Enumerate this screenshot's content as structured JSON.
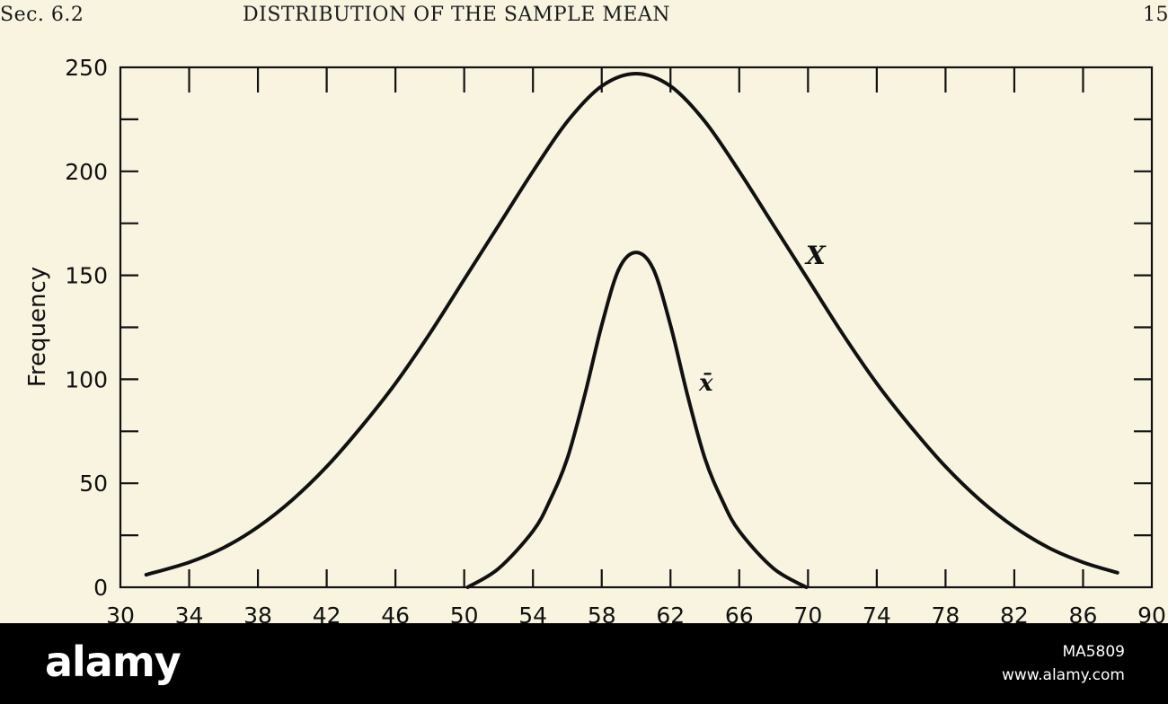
{
  "page_header": {
    "section": "Sec. 6.2",
    "title": "DISTRIBUTION OF THE SAMPLE MEAN",
    "page_number": "15"
  },
  "chart_data": {
    "type": "line",
    "title": "",
    "xlabel": "",
    "ylabel": "Frequency",
    "xlim": [
      30,
      90
    ],
    "ylim": [
      0,
      250
    ],
    "x_ticks": [
      30,
      34,
      38,
      42,
      46,
      50,
      54,
      58,
      62,
      66,
      70,
      74,
      78,
      82,
      86,
      90
    ],
    "y_ticks": [
      0,
      50,
      100,
      150,
      200,
      250
    ],
    "grid": false,
    "series": [
      {
        "name": "X",
        "x": [
          31.5,
          34,
          36,
          38,
          40,
          42,
          44,
          46,
          48,
          50,
          52,
          54,
          56,
          58,
          60,
          62,
          64,
          66,
          68,
          70,
          72,
          74,
          76,
          78,
          80,
          82,
          84,
          86,
          88
        ],
        "y": [
          6,
          12,
          19,
          29,
          42,
          58,
          77,
          98,
          122,
          148,
          174,
          200,
          224,
          241,
          247,
          241,
          224,
          200,
          174,
          148,
          122,
          98,
          77,
          58,
          42,
          29,
          19,
          12,
          7
        ]
      },
      {
        "name": "x̄",
        "x": [
          50.2,
          52,
          54,
          55,
          56,
          57,
          58,
          59,
          60,
          61,
          62,
          63,
          64,
          65,
          66,
          68,
          69.9
        ],
        "y": [
          0,
          9,
          27,
          42,
          62,
          92,
          126,
          153,
          161,
          153,
          126,
          92,
          62,
          42,
          27,
          9,
          0
        ]
      }
    ],
    "annotations": [
      "X",
      "x̄"
    ]
  },
  "footer": {
    "logo": "alamy",
    "image_id": "MA5809",
    "url": "www.alamy.com"
  }
}
